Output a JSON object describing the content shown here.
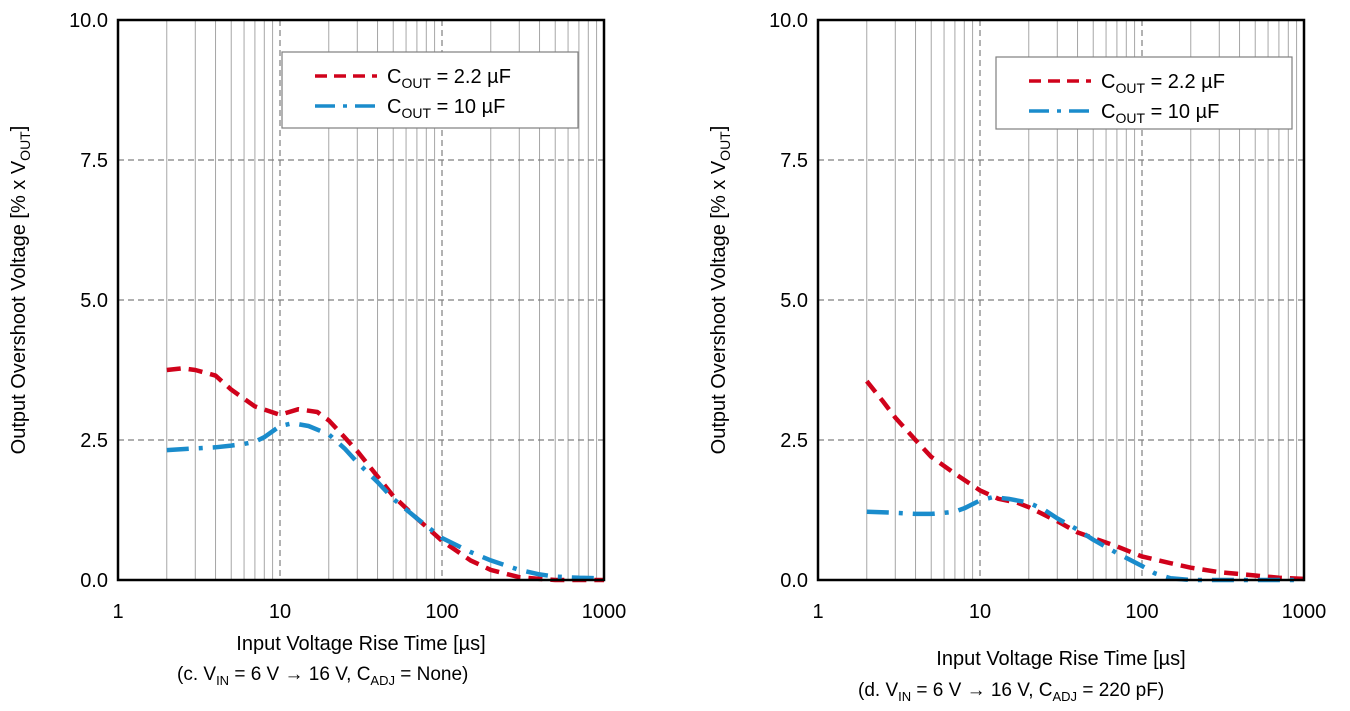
{
  "chart_data": [
    {
      "type": "line",
      "panel": "c",
      "xlabel": "Input Voltage Rise Time [µs]",
      "ylabel": "Output Overshoot Voltage [% x V",
      "ylabel_sub": "OUT",
      "ylabel_end": "]",
      "x_scale": "log",
      "xlim": [
        1,
        1000
      ],
      "ylim": [
        0,
        10
      ],
      "x_ticks": [
        "1",
        "10",
        "100",
        "1000"
      ],
      "y_ticks": [
        "0.0",
        "2.5",
        "5.0",
        "7.5",
        "10.0"
      ],
      "grid": true,
      "legend_position": "top-right",
      "caption": {
        "pre": "(c. V",
        "sub1": "IN",
        "mid": " = 6 V → 16 V, C",
        "sub2": "ADJ",
        "post": " = None)"
      },
      "series": [
        {
          "name": "C_OUT = 2.2 µF",
          "legend": {
            "pre": "C",
            "sub": "OUT",
            "post": " = 2.2 µF"
          },
          "color": "#d0021b",
          "style": "dashed",
          "x": [
            2,
            2.5,
            3,
            4,
            5,
            7,
            10,
            13,
            17,
            20,
            25,
            30,
            40,
            50,
            70,
            100,
            150,
            200,
            300,
            400,
            500,
            700,
            1000
          ],
          "y": [
            3.75,
            3.78,
            3.75,
            3.65,
            3.4,
            3.1,
            2.95,
            3.05,
            3.0,
            2.85,
            2.55,
            2.3,
            1.85,
            1.5,
            1.1,
            0.7,
            0.35,
            0.18,
            0.05,
            0.02,
            0.0,
            0.0,
            0.0
          ]
        },
        {
          "name": "C_OUT = 10 µF",
          "legend": {
            "pre": "C",
            "sub": "OUT",
            "post": " = 10 µF"
          },
          "color": "#1a8ccc",
          "style": "dashdot",
          "x": [
            2,
            3,
            4,
            5,
            6,
            7,
            8,
            10,
            12,
            15,
            20,
            25,
            30,
            40,
            50,
            70,
            100,
            150,
            200,
            300,
            400,
            500,
            700,
            1000
          ],
          "y": [
            2.32,
            2.35,
            2.37,
            2.4,
            2.43,
            2.47,
            2.55,
            2.75,
            2.8,
            2.75,
            2.6,
            2.35,
            2.1,
            1.75,
            1.45,
            1.1,
            0.75,
            0.5,
            0.35,
            0.18,
            0.1,
            0.06,
            0.04,
            0.03
          ]
        }
      ]
    },
    {
      "type": "line",
      "panel": "d",
      "xlabel": "Input Voltage Rise Time [µs]",
      "ylabel": "Output Overshoot Voltage [% x V",
      "ylabel_sub": "OUT",
      "ylabel_end": "]",
      "x_scale": "log",
      "xlim": [
        1,
        1000
      ],
      "ylim": [
        0,
        10
      ],
      "x_ticks": [
        "1",
        "10",
        "100",
        "1000"
      ],
      "y_ticks": [
        "0.0",
        "2.5",
        "5.0",
        "7.5",
        "10.0"
      ],
      "grid": true,
      "legend_position": "top-right",
      "caption": {
        "pre": "(d. V",
        "sub1": "IN",
        "mid": " = 6 V → 16 V, C",
        "sub2": "ADJ",
        "post": " = 220 pF)"
      },
      "series": [
        {
          "name": "C_OUT = 2.2 µF",
          "legend": {
            "pre": "C",
            "sub": "OUT",
            "post": " = 2.2 µF"
          },
          "color": "#d0021b",
          "style": "dashed",
          "x": [
            2,
            2.5,
            3,
            4,
            5,
            7,
            10,
            13,
            17,
            20,
            30,
            40,
            50,
            70,
            100,
            150,
            200,
            300,
            500,
            700,
            1000
          ],
          "y": [
            3.55,
            3.2,
            2.9,
            2.5,
            2.2,
            1.9,
            1.6,
            1.45,
            1.38,
            1.3,
            1.05,
            0.85,
            0.75,
            0.6,
            0.42,
            0.3,
            0.22,
            0.14,
            0.08,
            0.04,
            0.02
          ]
        },
        {
          "name": "C_OUT = 10 µF",
          "legend": {
            "pre": "C",
            "sub": "OUT",
            "post": " = 10 µF"
          },
          "color": "#1a8ccc",
          "style": "dashdot",
          "x": [
            2,
            3,
            4,
            5,
            6,
            7,
            8,
            10,
            12,
            15,
            20,
            25,
            30,
            40,
            50,
            70,
            100,
            120,
            150,
            200,
            300,
            1000
          ],
          "y": [
            1.22,
            1.2,
            1.18,
            1.18,
            1.2,
            1.22,
            1.28,
            1.42,
            1.48,
            1.45,
            1.38,
            1.25,
            1.1,
            0.9,
            0.72,
            0.48,
            0.25,
            0.12,
            0.03,
            0.0,
            0.0,
            0.0
          ]
        }
      ]
    }
  ]
}
